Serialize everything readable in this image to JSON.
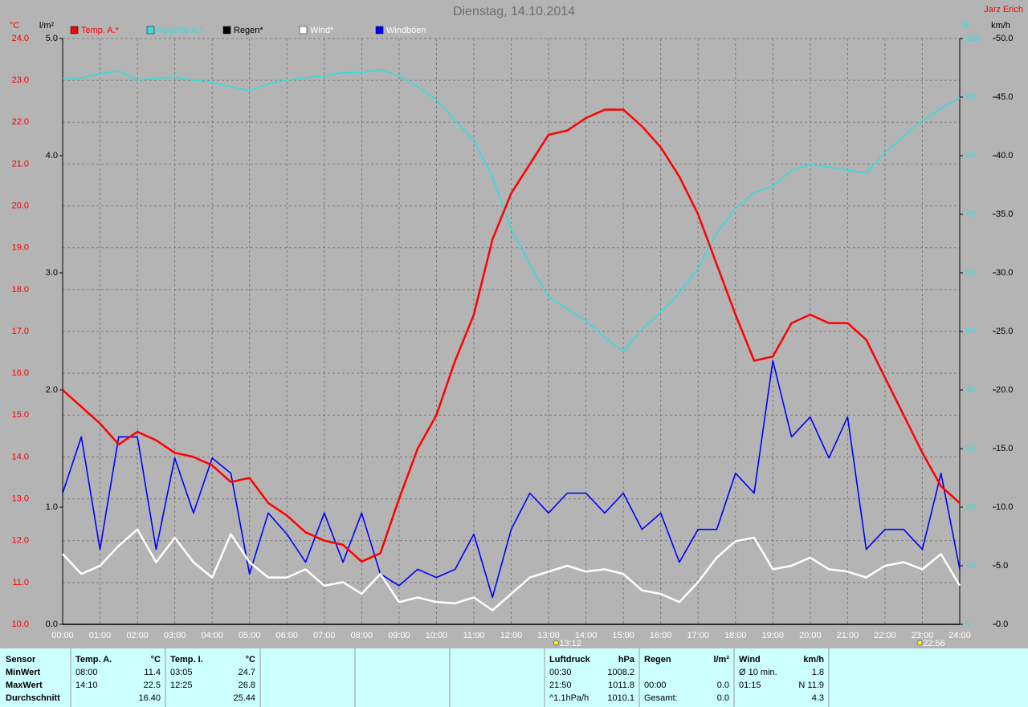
{
  "header": {
    "title": "Dienstag, 14.10.2014",
    "author": "Jarz Erich"
  },
  "chart_data": {
    "type": "line",
    "units": {
      "y": "°C",
      "y2": "l/m²",
      "y3": "%",
      "y4": "km/h"
    },
    "x": [
      0,
      0.5,
      1,
      1.5,
      2,
      2.5,
      3,
      3.5,
      4,
      4.5,
      5,
      5.5,
      6,
      6.5,
      7,
      7.5,
      8,
      8.5,
      9,
      9.5,
      10,
      10.5,
      11,
      11.5,
      12,
      12.5,
      13,
      13.5,
      14,
      14.5,
      15,
      15.5,
      16,
      16.5,
      17,
      17.5,
      18,
      18.5,
      19,
      19.5,
      20,
      20.5,
      21,
      21.5,
      22,
      22.5,
      23,
      23.5,
      24
    ],
    "xlim": [
      0,
      24
    ],
    "xticks": [
      {
        "value": 0,
        "label": "00:00"
      },
      {
        "value": 1,
        "label": "01:00"
      },
      {
        "value": 2,
        "label": "02:00"
      },
      {
        "value": 3,
        "label": "03:00"
      },
      {
        "value": 4,
        "label": "04:00"
      },
      {
        "value": 5,
        "label": "05:00"
      },
      {
        "value": 6,
        "label": "06:00"
      },
      {
        "value": 7,
        "label": "07:00"
      },
      {
        "value": 8,
        "label": "08:00"
      },
      {
        "value": 9,
        "label": "09:00"
      },
      {
        "value": 10,
        "label": "10:00"
      },
      {
        "value": 11,
        "label": "11:00"
      },
      {
        "value": 12,
        "label": "12:00"
      },
      {
        "value": 13,
        "label": "13:00"
      },
      {
        "value": 14,
        "label": "14:00"
      },
      {
        "value": 15,
        "label": "15:00"
      },
      {
        "value": 16,
        "label": "16:00"
      },
      {
        "value": 17,
        "label": "17:00"
      },
      {
        "value": 18,
        "label": "18:00"
      },
      {
        "value": 19,
        "label": "19:00"
      },
      {
        "value": 20,
        "label": "20:00"
      },
      {
        "value": 21,
        "label": "21:00"
      },
      {
        "value": 22,
        "label": "22:00"
      },
      {
        "value": 23,
        "label": "23:00"
      },
      {
        "value": 24,
        "label": "24:00"
      }
    ],
    "ylim": [
      10,
      24
    ],
    "yticks": [
      {
        "value": 10,
        "label": "10.0"
      },
      {
        "value": 11,
        "label": "11.0"
      },
      {
        "value": 12,
        "label": "12.0"
      },
      {
        "value": 13,
        "label": "13.0"
      },
      {
        "value": 14,
        "label": "14.0"
      },
      {
        "value": 15,
        "label": "15.0"
      },
      {
        "value": 16,
        "label": "16.0"
      },
      {
        "value": 17,
        "label": "17.0"
      },
      {
        "value": 18,
        "label": "18.0"
      },
      {
        "value": 19,
        "label": "19.0"
      },
      {
        "value": 20,
        "label": "20.0"
      },
      {
        "value": 21,
        "label": "21.0"
      },
      {
        "value": 22,
        "label": "22.0"
      },
      {
        "value": 23,
        "label": "23.0"
      },
      {
        "value": 24,
        "label": "24.0"
      }
    ],
    "y2lim": [
      0,
      5
    ],
    "y2ticks": [
      {
        "value": 0,
        "label": "0.0"
      },
      {
        "value": 1,
        "label": "1.0"
      },
      {
        "value": 2,
        "label": "2.0"
      },
      {
        "value": 3,
        "label": "3.0"
      },
      {
        "value": 4,
        "label": "4.0"
      },
      {
        "value": 5,
        "label": "5.0"
      }
    ],
    "y3lim": [
      0,
      100
    ],
    "y3ticks": [
      0,
      10,
      20,
      30,
      40,
      50,
      60,
      70,
      80,
      90,
      100
    ],
    "y4lim": [
      0,
      50
    ],
    "y4ticks": [
      {
        "value": 0,
        "label": "0.0"
      },
      {
        "value": 5,
        "label": "5.0"
      },
      {
        "value": 10,
        "label": "10.0"
      },
      {
        "value": 15,
        "label": "15.0"
      },
      {
        "value": 20,
        "label": "20.0"
      },
      {
        "value": 25,
        "label": "25.0"
      },
      {
        "value": 30,
        "label": "30.0"
      },
      {
        "value": 35,
        "label": "35.0"
      },
      {
        "value": 40,
        "label": "40.0"
      },
      {
        "value": 45,
        "label": "45.0"
      },
      {
        "value": 50,
        "label": "50.0"
      }
    ],
    "grid": true,
    "series": [
      {
        "name": "Temp. A.*",
        "color": "#ff0000",
        "axis": "y",
        "values": [
          15.6,
          15.2,
          14.8,
          14.3,
          14.6,
          14.4,
          14.1,
          14.0,
          13.8,
          13.4,
          13.5,
          12.9,
          12.6,
          12.2,
          12.0,
          11.9,
          11.5,
          11.7,
          13.0,
          14.2,
          15.0,
          16.3,
          17.4,
          19.2,
          20.3,
          21.0,
          21.7,
          21.8,
          22.1,
          22.3,
          22.3,
          21.9,
          21.4,
          20.7,
          19.8,
          18.6,
          17.4,
          16.3,
          16.4,
          17.2,
          17.4,
          17.2,
          17.2,
          16.8,
          15.9,
          15.0,
          14.1,
          13.3,
          12.9
        ]
      },
      {
        "name": "Feuchte A.*",
        "color": "#33dddd",
        "axis": "y3",
        "values": [
          93.2,
          93.3,
          94.0,
          94.5,
          92.9,
          93.2,
          93.4,
          92.9,
          92.5,
          91.8,
          91.1,
          92.2,
          92.9,
          93.3,
          93.6,
          94.2,
          94.2,
          94.7,
          93.6,
          91.8,
          89.5,
          86.0,
          82.6,
          76.4,
          67.5,
          61.4,
          55.9,
          53.8,
          51.8,
          49.0,
          46.6,
          50.4,
          53.2,
          56.6,
          60.7,
          66.8,
          71.0,
          73.7,
          74.8,
          77.5,
          78.5,
          78.1,
          77.5,
          77.1,
          80.5,
          83.3,
          86.0,
          88.1,
          89.9
        ]
      },
      {
        "name": "Regen*",
        "color": "#000000",
        "axis": "y2",
        "values": [
          0,
          0,
          0,
          0,
          0,
          0,
          0,
          0,
          0,
          0,
          0,
          0,
          0,
          0,
          0,
          0,
          0,
          0,
          0,
          0,
          0,
          0,
          0,
          0,
          0,
          0,
          0,
          0,
          0,
          0,
          0,
          0,
          0,
          0,
          0,
          0,
          0,
          0,
          0,
          0,
          0,
          0,
          0,
          0,
          0,
          0,
          0,
          0,
          0
        ]
      },
      {
        "name": "Wind*",
        "color": "#ffffff",
        "axis": "y4",
        "values": [
          6.0,
          4.3,
          5.0,
          6.7,
          8.1,
          5.3,
          7.4,
          5.3,
          4.0,
          7.7,
          5.3,
          4.0,
          4.0,
          4.7,
          3.3,
          3.6,
          2.6,
          4.3,
          1.9,
          2.3,
          1.9,
          1.8,
          2.3,
          1.2,
          2.6,
          4.0,
          4.5,
          5.0,
          4.5,
          4.7,
          4.3,
          2.9,
          2.6,
          1.9,
          3.6,
          5.7,
          7.1,
          7.4,
          4.7,
          5.0,
          5.7,
          4.7,
          4.5,
          4.0,
          5.0,
          5.3,
          4.7,
          6.0,
          3.3
        ]
      },
      {
        "name": "Windböen",
        "color": "#0000ff",
        "axis": "y4",
        "values": [
          11.2,
          16.0,
          6.4,
          16.0,
          16.0,
          6.4,
          14.2,
          9.5,
          14.2,
          12.9,
          4.3,
          9.5,
          7.7,
          5.3,
          9.5,
          5.3,
          9.5,
          4.3,
          3.3,
          4.7,
          4.0,
          4.7,
          7.7,
          2.3,
          8.1,
          11.2,
          9.5,
          11.2,
          11.2,
          9.5,
          11.2,
          8.1,
          9.5,
          5.3,
          8.1,
          8.1,
          12.9,
          11.2,
          22.5,
          16.0,
          17.7,
          14.2,
          17.7,
          6.4,
          8.1,
          8.1,
          6.4,
          12.9,
          4.7
        ]
      }
    ],
    "annotations": [
      {
        "x": 13.2,
        "label": "13:12"
      },
      {
        "x": 22.93,
        "label": "22:56"
      }
    ]
  },
  "table": {
    "row_labels": [
      "Sensor",
      "MinWert",
      "MaxWert",
      "Durchschnitt"
    ],
    "blocks": [
      {
        "title": "Temp. A.",
        "unit": "°C",
        "rows": [
          {
            "time": "08:00",
            "value": "11.4"
          },
          {
            "time": "14:10",
            "value": "22.5"
          },
          {
            "value": "16.40"
          }
        ]
      },
      {
        "title": "Temp. I.",
        "unit": "°C",
        "rows": [
          {
            "time": "03:05",
            "value": "24.7"
          },
          {
            "time": "12:25",
            "value": "26.8"
          },
          {
            "value": "25.44"
          }
        ]
      },
      {
        "title": "Luftdruck",
        "unit": "hPa",
        "rows": [
          {
            "time": "00:30",
            "value": "1008.2"
          },
          {
            "time": "21:50",
            "value": "1011.8"
          },
          {
            "time": "^1.1hPa/h",
            "value": "1010.1"
          }
        ]
      },
      {
        "title": "Regen",
        "unit": "l/m²",
        "rows": [
          null,
          {
            "time": "00:00",
            "value": "0.0"
          },
          {
            "time": "Gesamt:",
            "value": "0.0"
          }
        ]
      },
      {
        "title": "Wind",
        "unit": "km/h",
        "rows": [
          {
            "time": "Ø 10 min.",
            "value": "1.8"
          },
          {
            "time": "01:15",
            "value": "N 11.9"
          },
          {
            "value": "4.3"
          }
        ]
      }
    ]
  }
}
